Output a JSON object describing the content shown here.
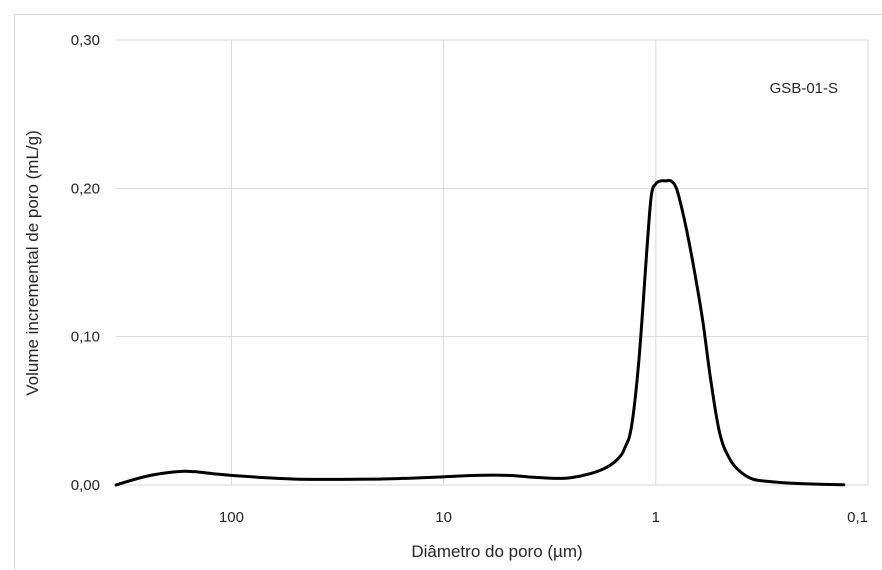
{
  "chart_data": {
    "type": "line",
    "title": "",
    "xlabel": "Diâmetro do poro (µm)",
    "ylabel": "Volume incremental de poro (mL/g)",
    "x_scale": "log-reversed",
    "xlim": [
      350,
      0.1
    ],
    "ylim": [
      0,
      0.3
    ],
    "x_ticks": [
      100,
      10,
      1,
      0.1
    ],
    "x_tick_labels": [
      "100",
      "10",
      "1",
      "0,1"
    ],
    "y_ticks": [
      0,
      0.1,
      0.2,
      0.3
    ],
    "y_tick_labels": [
      "0,00",
      "0,10",
      "0,20",
      "0,30"
    ],
    "grid": true,
    "annotation": "GSB-01-S",
    "line_color": "#000000",
    "grid_color": "#d9d9d9",
    "series": [
      {
        "x": [
          350,
          250,
          180,
          150,
          120,
          100,
          70,
          50,
          30,
          20,
          15,
          10,
          7,
          5,
          4,
          3,
          2.5,
          2,
          1.7,
          1.5,
          1.4,
          1.3,
          1.2,
          1.1,
          1.05,
          1.0,
          0.95,
          0.9,
          0.85,
          0.8,
          0.75,
          0.7,
          0.65,
          0.6,
          0.55,
          0.5,
          0.45,
          0.4,
          0.35,
          0.3,
          0.25,
          0.2,
          0.15,
          0.13
        ],
        "y": [
          0.0,
          0.006,
          0.009,
          0.009,
          0.0075,
          0.0065,
          0.005,
          0.004,
          0.0038,
          0.004,
          0.0045,
          0.0055,
          0.0065,
          0.0065,
          0.0055,
          0.0045,
          0.005,
          0.008,
          0.012,
          0.018,
          0.025,
          0.04,
          0.085,
          0.16,
          0.195,
          0.203,
          0.205,
          0.205,
          0.205,
          0.2,
          0.185,
          0.165,
          0.14,
          0.11,
          0.07,
          0.035,
          0.018,
          0.009,
          0.004,
          0.0025,
          0.0015,
          0.0008,
          0.0003,
          0.0002
        ]
      }
    ]
  }
}
